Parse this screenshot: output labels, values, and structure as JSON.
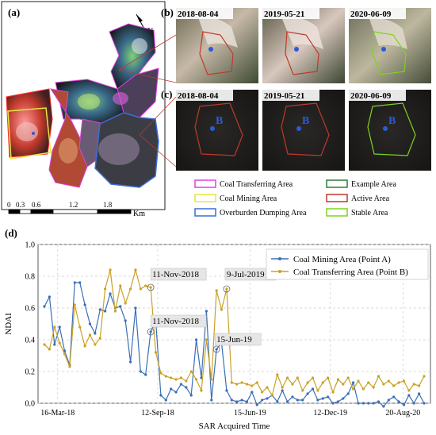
{
  "figure": {
    "panels": {
      "a": "(a)",
      "b": "(b)",
      "c": "(c)",
      "d": "(d)"
    },
    "north_label": "N",
    "scale_bar": {
      "ticks": [
        "0",
        "0.3",
        "0.6",
        "1.2",
        "1.8"
      ],
      "unit": "Km"
    },
    "image_dates": [
      "2018-08-04",
      "2019-05-21",
      "2020-06-09"
    ],
    "point_label": "B",
    "area_legend": [
      {
        "label": "Coal Transferring Area",
        "color": "#e040e0"
      },
      {
        "label": "Example Area",
        "color": "#2e7d32"
      },
      {
        "label": "Coal Mining Area",
        "color": "#e6e640"
      },
      {
        "label": "Active Area",
        "color": "#c0392b"
      },
      {
        "label": "Overburden Dumping Area",
        "color": "#3a6fd8"
      },
      {
        "label": "Stable Area",
        "color": "#7ed321"
      }
    ]
  },
  "chart_data": {
    "type": "line",
    "ylabel": "NDAI",
    "xlabel": "SAR Acquired Time",
    "ylim": [
      0.0,
      1.0
    ],
    "yticks": [
      "0.0",
      "0.2",
      "0.4",
      "0.6",
      "0.8",
      "1.0"
    ],
    "xticks": [
      "16-Mar-18",
      "12-Sep-18",
      "15-Jun-19",
      "12-Dec-19",
      "20-Aug-20"
    ],
    "grid": true,
    "legend_position": "top-right",
    "series": [
      {
        "name": "Coal Mining Area (Point A)",
        "color": "#3b6fb6",
        "values": [
          0.61,
          0.67,
          0.37,
          0.48,
          0.33,
          0.24,
          0.76,
          0.76,
          0.62,
          0.5,
          0.44,
          0.59,
          0.58,
          0.69,
          0.6,
          0.61,
          0.52,
          0.26,
          0.6,
          0.2,
          0.18,
          0.45,
          0.52,
          0.05,
          0.02,
          0.09,
          0.07,
          0.12,
          0.1,
          0.05,
          0.4,
          0.16,
          0.58,
          0.02,
          0.34,
          0.38,
          0.08,
          0.02,
          0.01,
          0.02,
          0.01,
          0.07,
          -0.01,
          0.02,
          0.03,
          0.05,
          0.01,
          0.08,
          0.01,
          0.04,
          0.02,
          0.02,
          0.06,
          0.09,
          0.02,
          0.03,
          0.04,
          0.0,
          0.01,
          0.03,
          0.06,
          0.13,
          0.0,
          0.0,
          0.0,
          0.0,
          0.01,
          -0.02,
          0.02,
          0.04,
          0.01,
          -0.01,
          0.05,
          0.0,
          0.06,
          0.0
        ]
      },
      {
        "name": "Coal Transferring Area (Point B)",
        "color": "#c9a227",
        "values": [
          0.37,
          0.34,
          0.48,
          0.38,
          0.31,
          0.23,
          0.62,
          0.48,
          0.36,
          0.43,
          0.37,
          0.41,
          0.72,
          0.84,
          0.58,
          0.74,
          0.63,
          0.72,
          0.84,
          0.72,
          0.74,
          0.73,
          0.32,
          0.19,
          0.17,
          0.16,
          0.15,
          0.16,
          0.14,
          0.2,
          0.15,
          0.08,
          0.4,
          0.15,
          0.71,
          0.59,
          0.72,
          0.13,
          0.12,
          0.13,
          0.12,
          0.11,
          0.13,
          0.07,
          0.1,
          0.05,
          0.18,
          0.1,
          0.16,
          0.12,
          0.16,
          0.08,
          0.13,
          0.16,
          0.08,
          0.13,
          0.16,
          0.07,
          0.15,
          0.12,
          0.16,
          0.09,
          0.14,
          0.09,
          0.13,
          0.1,
          0.17,
          0.12,
          0.14,
          0.11,
          0.13,
          0.14,
          0.08,
          0.12,
          0.11,
          0.17
        ]
      }
    ],
    "annotations": [
      {
        "text": "11-Nov-2018",
        "series": 1,
        "index": 21
      },
      {
        "text": "11-Nov-2018",
        "series": 0,
        "index": 21
      },
      {
        "text": "9-Jul-2019",
        "series": 1,
        "index": 36
      },
      {
        "text": "15-Jun-19",
        "series": 0,
        "index": 34
      }
    ]
  }
}
